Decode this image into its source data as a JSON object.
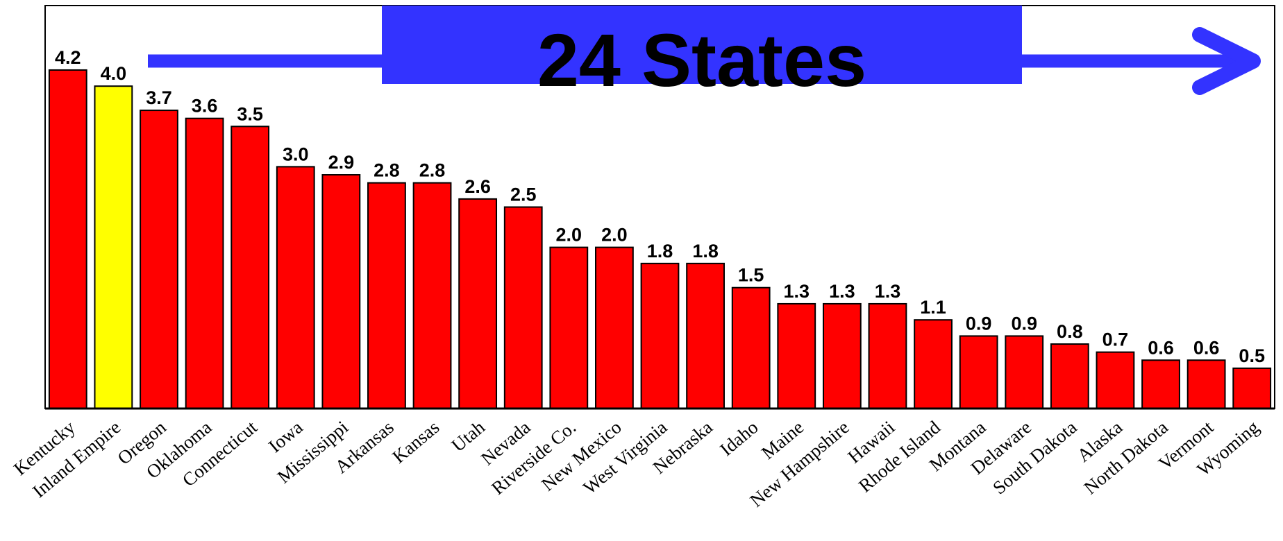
{
  "chart_data": {
    "type": "bar",
    "annotation": "24 States",
    "categories": [
      "Kentucky",
      "Inland Empire",
      "Oregon",
      "Oklahoma",
      "Connecticut",
      "Iowa",
      "Mississippi",
      "Arkansas",
      "Kansas",
      "Utah",
      "Nevada",
      "Riverside Co.",
      "New Mexico",
      "West Virginia",
      "Nebraska",
      "Idaho",
      "Maine",
      "New Hampshire",
      "Hawaii",
      "Rhode Island",
      "Montana",
      "Delaware",
      "South Dakota",
      "Alaska",
      "North Dakota",
      "Vermont",
      "Wyoming"
    ],
    "values": [
      4.2,
      4.0,
      3.7,
      3.6,
      3.5,
      3.0,
      2.9,
      2.8,
      2.8,
      2.6,
      2.5,
      2.0,
      2.0,
      1.8,
      1.8,
      1.5,
      1.3,
      1.3,
      1.3,
      1.1,
      0.9,
      0.9,
      0.8,
      0.7,
      0.6,
      0.6,
      0.5
    ],
    "value_labels": [
      "4.2",
      "4.0",
      "3.7",
      "3.6",
      "3.5",
      "3.0",
      "2.9",
      "2.8",
      "2.8",
      "2.6",
      "2.5",
      "2.0",
      "2.0",
      "1.8",
      "1.8",
      "1.5",
      "1.3",
      "1.3",
      "1.3",
      "1.1",
      "0.9",
      "0.9",
      "0.8",
      "0.7",
      "0.6",
      "0.6",
      "0.5"
    ],
    "colors": [
      "#ff0000",
      "#ffff00",
      "#ff0000",
      "#ff0000",
      "#ff0000",
      "#ff0000",
      "#ff0000",
      "#ff0000",
      "#ff0000",
      "#ff0000",
      "#ff0000",
      "#ff0000",
      "#ff0000",
      "#ff0000",
      "#ff0000",
      "#ff0000",
      "#ff0000",
      "#ff0000",
      "#ff0000",
      "#ff0000",
      "#ff0000",
      "#ff0000",
      "#ff0000",
      "#ff0000",
      "#ff0000",
      "#ff0000",
      "#ff0000"
    ],
    "annotation_color": "#3333ff",
    "ylim": [
      0,
      5
    ]
  }
}
